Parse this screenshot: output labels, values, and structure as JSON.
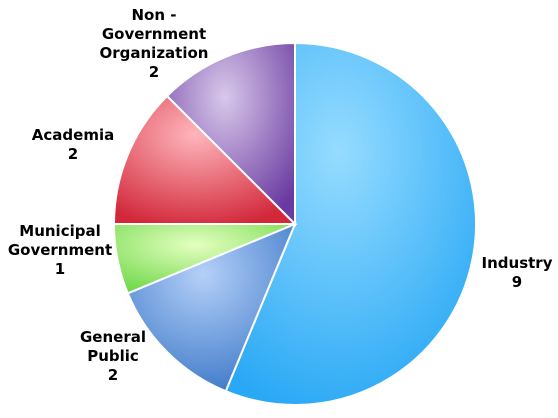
{
  "chart_data": {
    "type": "pie",
    "title": "",
    "slices": [
      {
        "label_lines": [
          "Industry"
        ],
        "value": 9,
        "value_text": "9",
        "color": "#29a8f5",
        "light": "#96dcff"
      },
      {
        "label_lines": [
          "General",
          "Public"
        ],
        "value": 2,
        "value_text": "2",
        "color": "#3d78c8",
        "light": "#b4d0f8"
      },
      {
        "label_lines": [
          "Municipal",
          "Government"
        ],
        "value": 1,
        "value_text": "1",
        "color": "#6ed848",
        "light": "#e4ffc0"
      },
      {
        "label_lines": [
          "Academia"
        ],
        "value": 2,
        "value_text": "2",
        "color": "#d2283a",
        "light": "#ffb6bc"
      },
      {
        "label_lines": [
          "Non -",
          "Government",
          "Organization"
        ],
        "value": 2,
        "value_text": "2",
        "color": "#6a3aa0",
        "light": "#d8c8ea"
      }
    ]
  }
}
